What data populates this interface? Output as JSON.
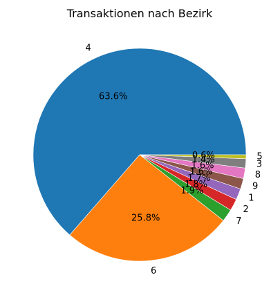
{
  "chart_data": {
    "type": "pie",
    "title": "Transaktionen nach Bezirk",
    "categories": [
      "4",
      "6",
      "7",
      "2",
      "1",
      "9",
      "8",
      "3",
      "5"
    ],
    "values": [
      63.6,
      25.8,
      1.9,
      1.8,
      1.7,
      1.6,
      1.6,
      1.4,
      0.6
    ],
    "percent_labels": [
      "63.6%",
      "25.8%",
      "1.9%",
      "1.8%",
      "1.7%",
      "1.6%",
      "1.6%",
      "1.4%",
      "0.6%"
    ],
    "colors": [
      "#1f77b4",
      "#ff7f0e",
      "#2ca02c",
      "#d62728",
      "#9467bd",
      "#8c564b",
      "#e377c2",
      "#7f7f7f",
      "#bcbd22"
    ],
    "start_angle_deg": 0,
    "direction": "counterclockwise"
  }
}
